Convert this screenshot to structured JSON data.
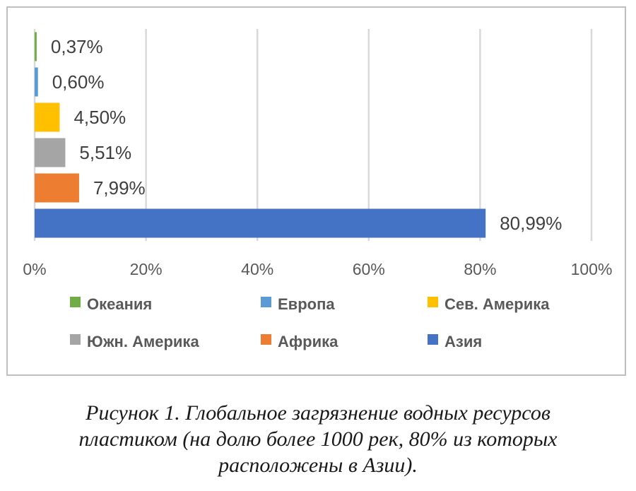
{
  "chart_data": {
    "type": "bar",
    "orientation": "horizontal",
    "categories": [
      "Азия",
      "Африка",
      "Южн. Америка",
      "Сев. Америка",
      "Европа",
      "Океания"
    ],
    "values": [
      80.99,
      7.99,
      5.51,
      4.5,
      0.6,
      0.37
    ],
    "value_labels": [
      "80,99%",
      "7,99%",
      "5,51%",
      "4,50%",
      "0,60%",
      "0,37%"
    ],
    "colors": [
      "#4472c4",
      "#ed7d31",
      "#a5a5a5",
      "#ffc000",
      "#5b9bd5",
      "#70ad47"
    ],
    "xlim": [
      0,
      100
    ],
    "xticks": [
      "0%",
      "20%",
      "40%",
      "60%",
      "80%",
      "100%"
    ],
    "grid": true,
    "legend_position": "bottom",
    "legend": [
      {
        "label": "Океания",
        "color": "#70ad47"
      },
      {
        "label": "Европа",
        "color": "#5b9bd5"
      },
      {
        "label": "Сев. Америка",
        "color": "#ffc000"
      },
      {
        "label": "Южн. Америка",
        "color": "#a5a5a5"
      },
      {
        "label": "Африка",
        "color": "#ed7d31"
      },
      {
        "label": "Азия",
        "color": "#4472c4"
      }
    ]
  },
  "caption": "Рисунок 1. Глобальное загрязнение водных ресурсов\nпластиком (на долю более 1000 рек, 80% из которых\nрасположены в Азии)."
}
